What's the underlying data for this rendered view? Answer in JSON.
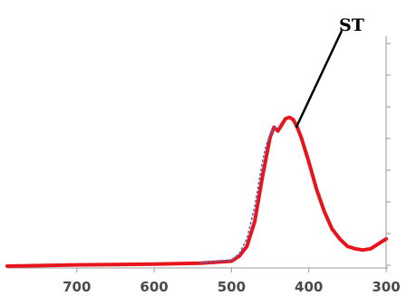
{
  "chart_data": {
    "type": "line",
    "title": "",
    "xlabel": "",
    "ylabel": "",
    "x_reversed": true,
    "xlim": [
      790,
      300
    ],
    "ylim": [
      0,
      1
    ],
    "x_ticks": [
      700,
      600,
      500,
      400,
      300
    ],
    "x_tick_labels": [
      "700",
      "600",
      "500",
      "400",
      "300"
    ],
    "grid": false,
    "legend": "none",
    "colors": {
      "series_main": "#e8141c",
      "series_overlay": "#4a6fc4",
      "axis": "#999999",
      "annotation": "#000000"
    },
    "series": [
      {
        "x": [
          790,
          700,
          600,
          540,
          500,
          490,
          480,
          470,
          460,
          450,
          445,
          440,
          435,
          430,
          425,
          420,
          415,
          410,
          400,
          390,
          380,
          370,
          360,
          350,
          340,
          330,
          320,
          310,
          300
        ],
        "y": [
          0.0,
          0.005,
          0.008,
          0.012,
          0.02,
          0.04,
          0.08,
          0.18,
          0.36,
          0.52,
          0.56,
          0.545,
          0.57,
          0.595,
          0.6,
          0.59,
          0.56,
          0.52,
          0.42,
          0.31,
          0.22,
          0.15,
          0.11,
          0.08,
          0.07,
          0.065,
          0.07,
          0.09,
          0.11
        ]
      },
      {
        "x": [
          540,
          500,
          490,
          480,
          470,
          460,
          455,
          450,
          445,
          440
        ],
        "y": [
          0.012,
          0.025,
          0.05,
          0.11,
          0.24,
          0.42,
          0.49,
          0.53,
          0.555,
          0.565
        ]
      }
    ],
    "annotations": [
      {
        "text": "ST",
        "x": 420,
        "y": 0.58
      }
    ]
  }
}
